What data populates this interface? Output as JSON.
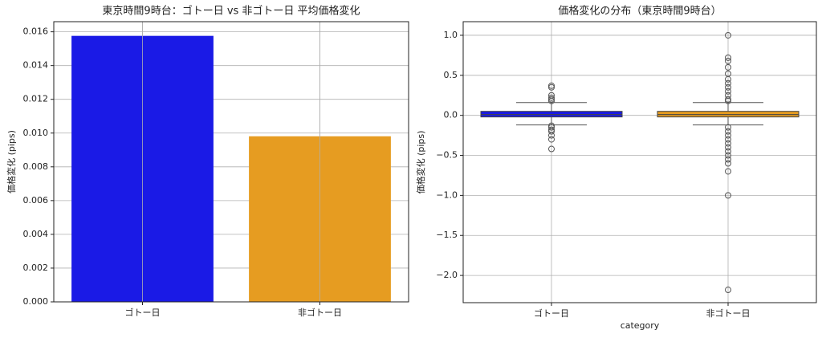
{
  "chart_data": [
    {
      "type": "bar",
      "title": "東京時間9時台：ゴトー日 vs 非ゴトー日 平均価格変化",
      "ylabel": "価格変化 (pips)",
      "categories": [
        "ゴトー日",
        "非ゴトー日"
      ],
      "values": [
        0.01576,
        0.00981
      ],
      "colors": [
        "#1a1ae6",
        "#e69c21"
      ],
      "ylim": [
        0,
        0.0166
      ],
      "yticks": [
        {
          "value": 0,
          "label": "0.000"
        },
        {
          "value": 0.002,
          "label": "0.002"
        },
        {
          "value": 0.004,
          "label": "0.004"
        },
        {
          "value": 0.006,
          "label": "0.006"
        },
        {
          "value": 0.008,
          "label": "0.008"
        },
        {
          "value": 0.01,
          "label": "0.010"
        },
        {
          "value": 0.012,
          "label": "0.012"
        },
        {
          "value": 0.014,
          "label": "0.014"
        },
        {
          "value": 0.016,
          "label": "0.016"
        }
      ],
      "grid": true
    },
    {
      "type": "box",
      "title": "価格変化の分布（東京時間9時台）",
      "xlabel": "category",
      "ylabel": "価格変化 (pips)",
      "categories": [
        "ゴトー日",
        "非ゴトー日"
      ],
      "colors": [
        "#1a1ae6",
        "#e69c21"
      ],
      "q1": [
        -0.02,
        -0.02
      ],
      "median": [
        0.01,
        0.01
      ],
      "q3": [
        0.05,
        0.05
      ],
      "whisker_low": [
        -0.12,
        -0.12
      ],
      "whisker_high": [
        0.16,
        0.16
      ],
      "outliers": [
        [
          0.37,
          0.35,
          0.25,
          0.22,
          0.2,
          0.18,
          -0.13,
          -0.15,
          -0.18,
          -0.2,
          -0.25,
          -0.3,
          -0.42
        ],
        [
          1.0,
          0.72,
          0.68,
          0.6,
          0.52,
          0.45,
          0.4,
          0.35,
          0.3,
          0.25,
          0.2,
          0.18,
          -0.15,
          -0.2,
          -0.25,
          -0.3,
          -0.35,
          -0.4,
          -0.45,
          -0.5,
          -0.55,
          -0.6,
          -0.7,
          -1.0,
          -2.18
        ]
      ],
      "ylim": [
        -2.34,
        1.17
      ],
      "yticks": [
        {
          "value": 1,
          "label": "1.0"
        },
        {
          "value": 0.5,
          "label": "0.5"
        },
        {
          "value": 0,
          "label": "0.0"
        },
        {
          "value": -0.5,
          "label": "−0.5"
        },
        {
          "value": -1,
          "label": "−1.0"
        },
        {
          "value": -1.5,
          "label": "−1.5"
        },
        {
          "value": -2,
          "label": "−2.0"
        }
      ],
      "grid": true
    }
  ]
}
